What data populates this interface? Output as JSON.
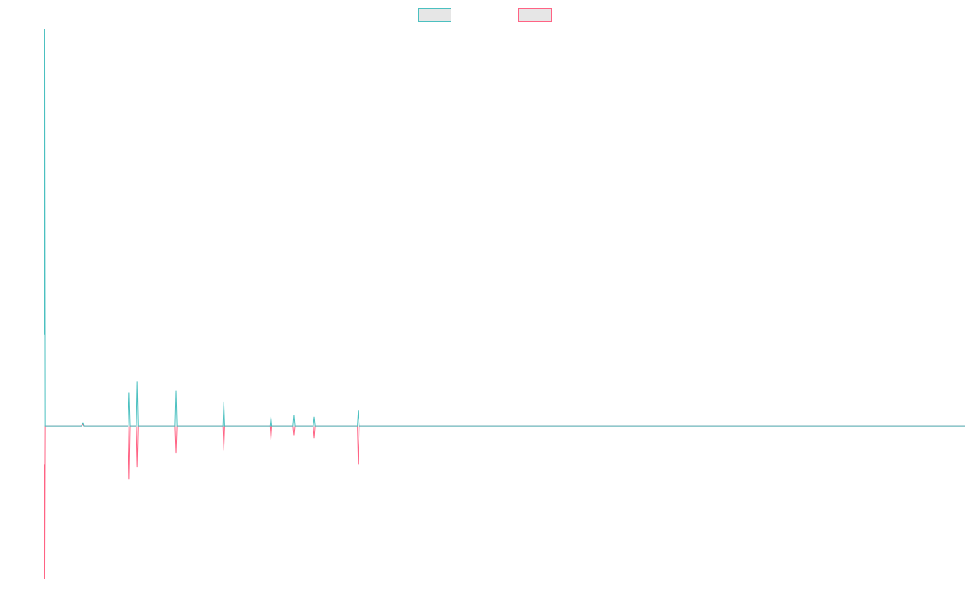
{
  "chart_data": {
    "type": "line",
    "title": "",
    "xlabel": "",
    "ylabel": "",
    "grid": false,
    "legend_placement": "top-center",
    "x": [
      0,
      0.4,
      1,
      10,
      35,
      36,
      36.6,
      40,
      42,
      43,
      91,
      92,
      93,
      100,
      101,
      102,
      142,
      143,
      144,
      194,
      195,
      196,
      245,
      246,
      247,
      270,
      271,
      272,
      292,
      293,
      294,
      320,
      340,
      341,
      342,
      390,
      391,
      392,
      404,
      405,
      406,
      1000
    ],
    "xlim": [
      0,
      1000
    ],
    "ylim": [
      -1.0,
      2.6
    ],
    "series": [
      {
        "color": "#4bc0c0",
        "values": [
          0.6,
          2.6,
          0.0,
          0.0,
          0.0,
          0.0,
          0.0,
          0.0,
          0.02,
          0.0,
          0.0,
          0.22,
          0.0,
          0.0,
          0.29,
          0.0,
          0.0,
          0.23,
          0.0,
          0.0,
          0.16,
          0.0,
          0.0,
          0.06,
          0.0,
          0.0,
          0.07,
          0.0,
          0.0,
          0.06,
          0.0,
          0.0,
          0.0,
          0.1,
          0.0,
          0.0,
          0.0,
          0.0,
          0.0,
          0.0,
          0.0,
          0.0
        ]
      },
      {
        "color": "#ff6384",
        "values": [
          -0.25,
          -1.0,
          0.0,
          0.0,
          0.0,
          0.0,
          0.0,
          0.0,
          0.01,
          0.0,
          0.0,
          -0.35,
          0.0,
          0.0,
          -0.27,
          0.0,
          0.0,
          -0.18,
          0.0,
          0.0,
          -0.16,
          0.0,
          0.0,
          -0.09,
          0.0,
          0.0,
          -0.06,
          0.0,
          0.0,
          -0.08,
          0.0,
          0.0,
          0.0,
          -0.25,
          0.0,
          0.0,
          0.0,
          0.0,
          0.0,
          0.0,
          0.0,
          0.0
        ]
      }
    ]
  }
}
